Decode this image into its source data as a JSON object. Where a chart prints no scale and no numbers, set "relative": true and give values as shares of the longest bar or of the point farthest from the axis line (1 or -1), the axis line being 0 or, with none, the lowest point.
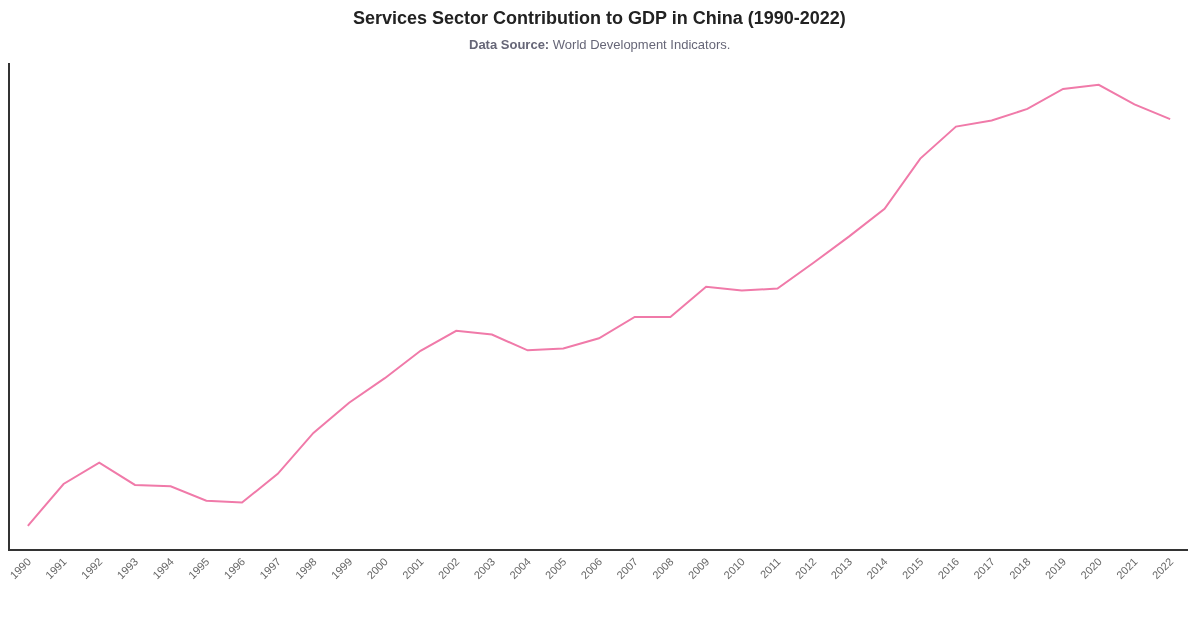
{
  "chart_data": {
    "type": "line",
    "title": "Services Sector Contribution to GDP in China (1990-2022)",
    "subtitle": "Data Source: World Development Indicators.",
    "categories": [
      "1990",
      "1991",
      "1992",
      "1993",
      "1994",
      "1995",
      "1996",
      "1997",
      "1998",
      "1999",
      "2000",
      "2001",
      "2002",
      "2003",
      "2004",
      "2005",
      "2006",
      "2007",
      "2008",
      "2009",
      "2010",
      "2011",
      "2012",
      "2013",
      "2014",
      "2015",
      "2016",
      "2017",
      "2018",
      "2019",
      "2020",
      "2021",
      "2022"
    ],
    "series": [
      {
        "color": "#f07aa9",
        "values": [
          0.05,
          0.14,
          0.186,
          0.138,
          0.135,
          0.104,
          0.1,
          0.162,
          0.25,
          0.315,
          0.368,
          0.427,
          0.47,
          0.462,
          0.428,
          0.432,
          0.454,
          0.5,
          0.5,
          0.565,
          0.557,
          0.561,
          0.616,
          0.673,
          0.733,
          0.841,
          0.91,
          0.923,
          0.948,
          0.991,
          1.0,
          0.958,
          0.926
        ]
      }
    ],
    "relative": true
  }
}
